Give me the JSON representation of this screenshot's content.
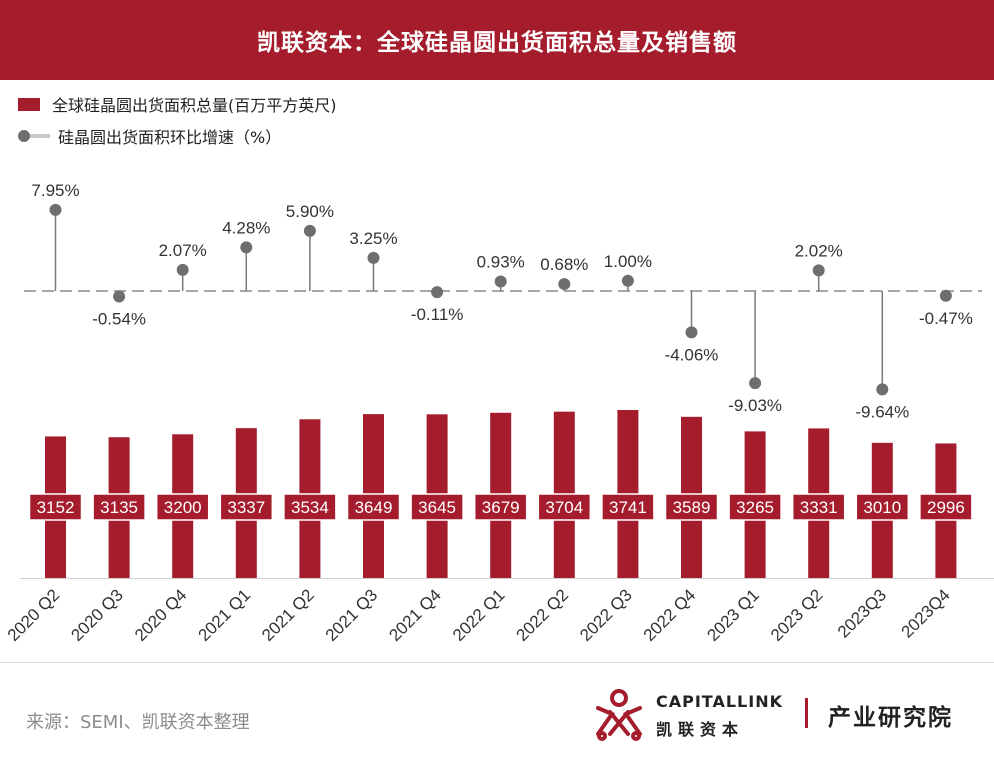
{
  "header": {
    "title": "凯联资本：全球硅晶圆出货面积总量及销售额"
  },
  "legend": {
    "bar_label": "全球硅晶圆出货面积总量(百万平方英尺)",
    "line_label": "硅晶圆出货面积环比增速（%）"
  },
  "colors": {
    "bar": "#a51d2d",
    "marker": "#6e6e6e",
    "stem": "#7a7a7a",
    "baseline": "#888888",
    "header": "#a51d2d"
  },
  "chart_data": {
    "type": "bar",
    "categories": [
      "2020 Q2",
      "2020 Q3",
      "2020 Q4",
      "2021 Q1",
      "2021 Q2",
      "2021 Q3",
      "2021 Q4",
      "2022 Q1",
      "2022 Q2",
      "2022 Q3",
      "2022 Q4",
      "2023 Q1",
      "2023 Q2",
      "2023Q3",
      "2023Q4"
    ],
    "series": [
      {
        "name": "全球硅晶圆出货面积总量(百万平方英尺)",
        "type": "bar",
        "values": [
          3152,
          3135,
          3200,
          3337,
          3534,
          3649,
          3645,
          3679,
          3704,
          3741,
          3589,
          3265,
          3331,
          3010,
          2996
        ]
      },
      {
        "name": "硅晶圆出货面积环比增速（%）",
        "type": "lollipop",
        "values": [
          7.95,
          -0.54,
          2.07,
          4.28,
          5.9,
          3.25,
          -0.11,
          0.93,
          0.68,
          1.0,
          -4.06,
          -9.03,
          2.02,
          -9.64,
          -0.47
        ],
        "labels": [
          "7.95%",
          "-0.54%",
          "2.07%",
          "4.28%",
          "5.90%",
          "3.25%",
          "-0.11%",
          "0.93%",
          "0.68%",
          "1.00%",
          "-4.06%",
          "-9.03%",
          "2.02%",
          "-9.64%",
          "-0.47%"
        ]
      }
    ],
    "grid": false,
    "legend_position": "top-left"
  },
  "footer": {
    "source": "来源：SEMI、凯联资本整理",
    "logo_en": "CAPITALLINK",
    "logo_cn": "凯联资本",
    "institute": "产业研究院"
  }
}
